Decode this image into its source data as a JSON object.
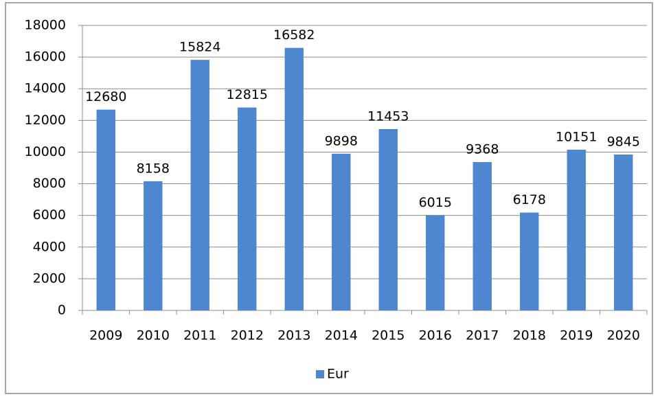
{
  "chart_data": {
    "type": "bar",
    "categories": [
      "2009",
      "2010",
      "2011",
      "2012",
      "2013",
      "2014",
      "2015",
      "2016",
      "2017",
      "2018",
      "2019",
      "2020"
    ],
    "series": [
      {
        "name": "Eur",
        "color": "#4f86d0",
        "values": [
          12680,
          8158,
          15824,
          12815,
          16582,
          9898,
          11453,
          6015,
          9368,
          6178,
          10151,
          9845
        ]
      }
    ],
    "ylim": [
      0,
      18000
    ],
    "yticks": [
      0,
      2000,
      4000,
      6000,
      8000,
      10000,
      12000,
      14000,
      16000,
      18000
    ],
    "grid": true,
    "legend": "bottom"
  }
}
